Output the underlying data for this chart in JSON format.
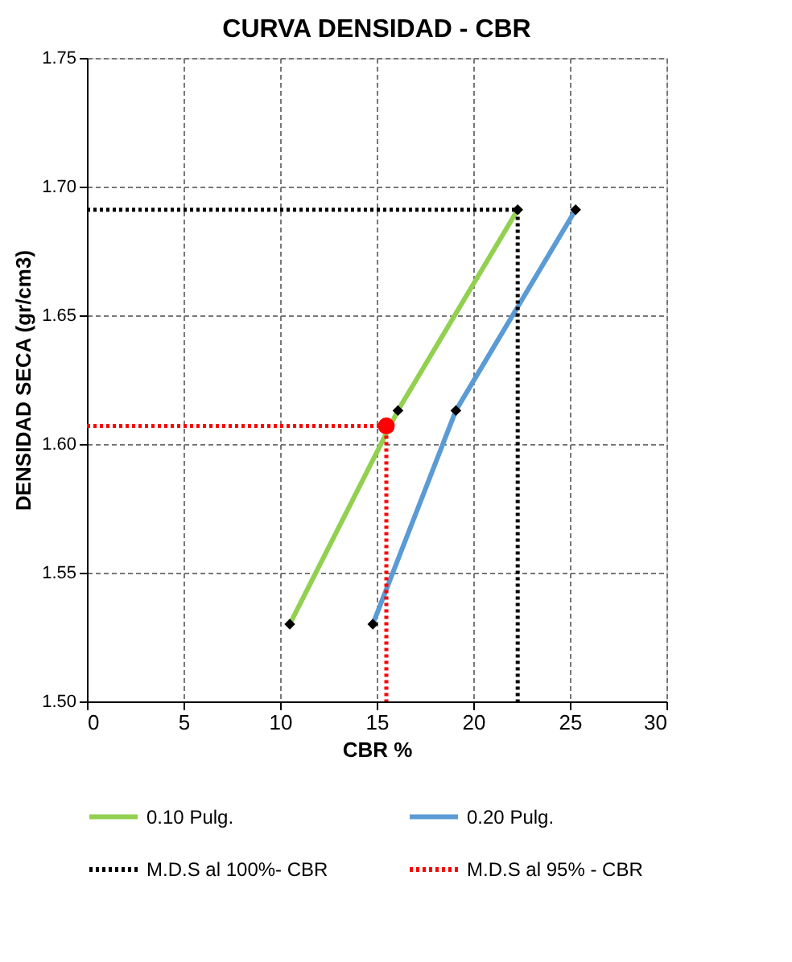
{
  "chart_data": {
    "type": "line",
    "title": "CURVA DENSIDAD - CBR",
    "xlabel": "CBR %",
    "ylabel": "DENSIDAD SECA (gr/cm3)",
    "xlim": [
      0,
      30
    ],
    "xticks": [
      0,
      5,
      10,
      15,
      20,
      25,
      30
    ],
    "ylim": [
      1.5,
      1.75
    ],
    "yticks": [
      {
        "value": 1.5,
        "label": "1.50"
      },
      {
        "value": 1.55,
        "label": "1.55"
      },
      {
        "value": 1.6,
        "label": "1.60"
      },
      {
        "value": 1.65,
        "label": "1.65"
      },
      {
        "value": 1.7,
        "label": "1.70"
      },
      {
        "value": 1.75,
        "label": "1.75"
      }
    ],
    "grid": true,
    "legend": "bottom",
    "series": [
      {
        "name": "0.10 Pulg.",
        "color": "#92d050",
        "x": [
          10.5,
          16.1,
          22.3
        ],
        "values": [
          1.53,
          1.613,
          1.691
        ],
        "marker": "diamond",
        "line_style": "solid"
      },
      {
        "name": "0.20 Pulg.",
        "color": "#5b9bd5",
        "x": [
          14.8,
          19.1,
          25.3
        ],
        "values": [
          1.53,
          1.613,
          1.691
        ],
        "marker": "diamond",
        "line_style": "solid"
      },
      {
        "name": "M.D.S al  100%- CBR",
        "color": "#000000",
        "x": [
          0,
          22.3,
          22.3
        ],
        "values": [
          1.691,
          1.691,
          1.5
        ],
        "marker": "none",
        "line_style": "dotted"
      },
      {
        "name": "M.D.S al 95% - CBR",
        "color": "#ff0000",
        "x": [
          0,
          15.5,
          15.5
        ],
        "values": [
          1.607,
          1.607,
          1.5
        ],
        "marker": "none",
        "line_style": "dotted"
      },
      {
        "type": "scatter",
        "color": "#ff0000",
        "x": [
          15.5
        ],
        "values": [
          1.607
        ],
        "marker": "circle"
      }
    ]
  }
}
